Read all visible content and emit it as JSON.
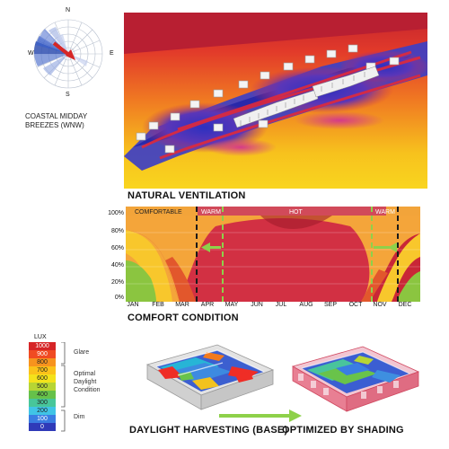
{
  "wind_rose": {
    "north": "N",
    "south": "S",
    "east": "E",
    "west": "W",
    "caption_line1": "COASTAL MIDDAY",
    "caption_line2": "BREEZES (WNW)"
  },
  "ventilation": {
    "title": "NATURAL VENTILATION"
  },
  "comfort_chart": {
    "title": "COMFORT CONDITION",
    "zones": [
      "COMFORTABLE",
      "WARM",
      "HOT",
      "WARM"
    ],
    "y_ticks": [
      "100%",
      "80%",
      "60%",
      "40%",
      "20%",
      "0%"
    ],
    "months": [
      "JAN",
      "FEB",
      "MAR",
      "APR",
      "MAY",
      "JUN",
      "JUL",
      "AUG",
      "SEP",
      "OCT",
      "NOV",
      "DEC"
    ]
  },
  "daylight_legend": {
    "unit": "LUX",
    "levels": [
      "1000",
      "900",
      "800",
      "700",
      "600",
      "500",
      "400",
      "300",
      "200",
      "100",
      "0"
    ],
    "groups": {
      "glare": "Glare",
      "optimal_line1": "Optimal",
      "optimal_line2": "Daylight",
      "optimal_line3": "Condition",
      "dim": "Dim"
    }
  },
  "daylight": {
    "base_label": "DAYLIGHT HARVESTING (BASE)",
    "optimized_label": "OPTIMIZED BY SHADING"
  },
  "colors": {
    "hot": "#d3263a",
    "warm": "#f2a43a",
    "comfortable": "#8bc540",
    "accent_green": "#8ed14a",
    "sim_blue": "#3f48c8"
  }
}
